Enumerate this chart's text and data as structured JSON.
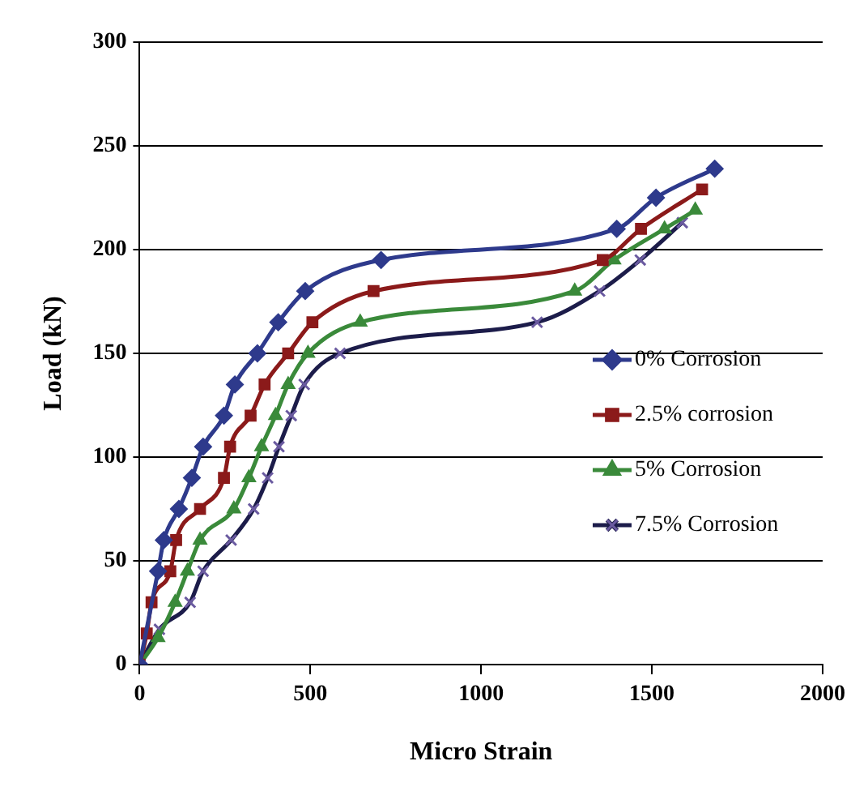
{
  "chart_data": {
    "type": "line",
    "xlabel": "Micro Strain",
    "ylabel": "Load (kN)",
    "xlim": [
      0,
      2000
    ],
    "xticks": [
      0,
      500,
      1000,
      1500,
      2000
    ],
    "ylim": [
      0,
      300
    ],
    "yticks": [
      0,
      50,
      100,
      150,
      200,
      250,
      300
    ],
    "grid": "y",
    "legend": "right",
    "series": [
      {
        "name": "0% Corrosion",
        "color": "#2e3a8c",
        "marker": "diamond",
        "x": [
          0,
          54,
          71,
          115,
          153,
          186,
          247,
          279,
          345,
          406,
          485,
          707,
          1397,
          1512,
          1684
        ],
        "values": [
          0,
          45,
          60,
          75,
          90,
          105,
          120,
          135,
          150,
          165,
          180,
          195,
          210,
          225,
          239
        ]
      },
      {
        "name": "2.5% corrosion",
        "color": "#8b1a1a",
        "marker": "square",
        "x": [
          0,
          21,
          35,
          90,
          107,
          177,
          247,
          265,
          325,
          366,
          435,
          506,
          685,
          1356,
          1468,
          1647
        ],
        "values": [
          0,
          15,
          30,
          45,
          60,
          75,
          90,
          105,
          120,
          135,
          150,
          165,
          180,
          195,
          210,
          229
        ]
      },
      {
        "name": "5% Corrosion",
        "color": "#3a8a3a",
        "marker": "triangle",
        "x": [
          0,
          54,
          104,
          140,
          177,
          276,
          320,
          357,
          398,
          435,
          493,
          646,
          1274,
          1389,
          1537,
          1627
        ],
        "values": [
          0,
          13,
          30,
          45,
          60,
          75,
          90,
          105,
          120,
          135,
          150,
          165,
          180,
          195,
          210,
          219
        ]
      },
      {
        "name": "7.5% Corrosion",
        "color": "#1c1c4a",
        "marker": "cross",
        "x": [
          0,
          58,
          148,
          186,
          268,
          334,
          375,
          408,
          444,
          482,
          587,
          1164,
          1347,
          1466,
          1589
        ],
        "values": [
          0,
          17,
          30,
          45,
          60,
          75,
          90,
          105,
          120,
          135,
          150,
          165,
          180,
          195,
          213
        ]
      }
    ]
  }
}
